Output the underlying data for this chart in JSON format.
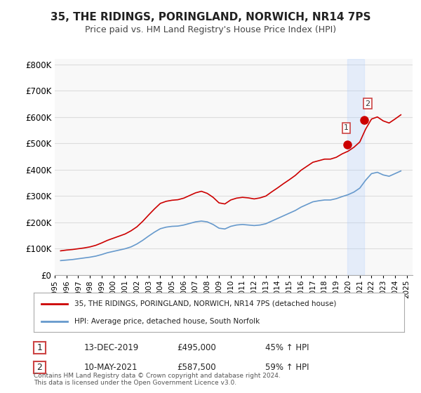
{
  "title": "35, THE RIDINGS, PORINGLAND, NORWICH, NR14 7PS",
  "subtitle": "Price paid vs. HM Land Registry's House Price Index (HPI)",
  "legend_label_1": "35, THE RIDINGS, PORINGLAND, NORWICH, NR14 7PS (detached house)",
  "legend_label_2": "HPI: Average price, detached house, South Norfolk",
  "annotation_1_label": "1",
  "annotation_1_date": "13-DEC-2019",
  "annotation_1_price": "£495,000",
  "annotation_1_hpi": "45% ↑ HPI",
  "annotation_2_label": "2",
  "annotation_2_date": "10-MAY-2021",
  "annotation_2_price": "£587,500",
  "annotation_2_hpi": "59% ↑ HPI",
  "footer": "Contains HM Land Registry data © Crown copyright and database right 2024.\nThis data is licensed under the Open Government Licence v3.0.",
  "line1_color": "#cc0000",
  "line2_color": "#6699cc",
  "marker1_color": "#cc0000",
  "background_color": "#ffffff",
  "grid_color": "#dddddd",
  "ylim": [
    0,
    820000
  ],
  "yticks": [
    0,
    100000,
    200000,
    300000,
    400000,
    500000,
    600000,
    700000,
    800000
  ],
  "ytick_labels": [
    "£0",
    "£100K",
    "£200K",
    "£300K",
    "£400K",
    "£500K",
    "£600K",
    "£700K",
    "£800K"
  ],
  "xlim_start": 1995.0,
  "xlim_end": 2025.5,
  "xtick_years": [
    1995,
    1996,
    1997,
    1998,
    1999,
    2000,
    2001,
    2002,
    2003,
    2004,
    2005,
    2006,
    2007,
    2008,
    2009,
    2010,
    2011,
    2012,
    2013,
    2014,
    2015,
    2016,
    2017,
    2018,
    2019,
    2020,
    2021,
    2022,
    2023,
    2024,
    2025
  ],
  "hpi_data": {
    "years": [
      1995.5,
      1996.0,
      1996.5,
      1997.0,
      1997.5,
      1998.0,
      1998.5,
      1999.0,
      1999.5,
      2000.0,
      2000.5,
      2001.0,
      2001.5,
      2002.0,
      2002.5,
      2003.0,
      2003.5,
      2004.0,
      2004.5,
      2005.0,
      2005.5,
      2006.0,
      2006.5,
      2007.0,
      2007.5,
      2008.0,
      2008.5,
      2009.0,
      2009.5,
      2010.0,
      2010.5,
      2011.0,
      2011.5,
      2012.0,
      2012.5,
      2013.0,
      2013.5,
      2014.0,
      2014.5,
      2015.0,
      2015.5,
      2016.0,
      2016.5,
      2017.0,
      2017.5,
      2018.0,
      2018.5,
      2019.0,
      2019.5,
      2020.0,
      2020.5,
      2021.0,
      2021.5,
      2022.0,
      2022.5,
      2023.0,
      2023.5,
      2024.0,
      2024.5
    ],
    "values": [
      55000,
      57000,
      59000,
      62000,
      65000,
      68000,
      72000,
      78000,
      85000,
      90000,
      95000,
      100000,
      107000,
      118000,
      132000,
      148000,
      163000,
      176000,
      182000,
      185000,
      186000,
      190000,
      196000,
      202000,
      205000,
      202000,
      192000,
      178000,
      175000,
      185000,
      190000,
      192000,
      190000,
      188000,
      190000,
      195000,
      205000,
      215000,
      225000,
      235000,
      245000,
      258000,
      268000,
      278000,
      282000,
      285000,
      285000,
      290000,
      298000,
      305000,
      315000,
      330000,
      360000,
      385000,
      390000,
      380000,
      375000,
      385000,
      395000
    ]
  },
  "property_data": {
    "years": [
      1995.5,
      1996.0,
      1996.5,
      1997.0,
      1997.5,
      1998.0,
      1998.5,
      1999.0,
      1999.5,
      2000.0,
      2000.5,
      2001.0,
      2001.5,
      2002.0,
      2002.5,
      2003.0,
      2003.5,
      2004.0,
      2004.5,
      2005.0,
      2005.5,
      2006.0,
      2006.5,
      2007.0,
      2007.5,
      2008.0,
      2008.5,
      2009.0,
      2009.5,
      2010.0,
      2010.5,
      2011.0,
      2011.5,
      2012.0,
      2012.5,
      2013.0,
      2013.5,
      2014.0,
      2014.5,
      2015.0,
      2015.5,
      2016.0,
      2016.5,
      2017.0,
      2017.5,
      2018.0,
      2018.5,
      2019.0,
      2019.5,
      2020.0,
      2020.5,
      2021.0,
      2021.5,
      2022.0,
      2022.5,
      2023.0,
      2023.5,
      2024.0,
      2024.5
    ],
    "values": [
      92000,
      95000,
      97000,
      100000,
      103000,
      107000,
      113000,
      122000,
      132000,
      140000,
      148000,
      156000,
      168000,
      183000,
      204000,
      228000,
      251000,
      272000,
      280000,
      284000,
      286000,
      292000,
      302000,
      312000,
      318000,
      310000,
      295000,
      274000,
      270000,
      285000,
      292000,
      295000,
      293000,
      289000,
      293000,
      300000,
      316000,
      331000,
      347000,
      362000,
      378000,
      398000,
      413000,
      428000,
      434000,
      440000,
      440000,
      447000,
      460000,
      470000,
      485000,
      505000,
      554000,
      592000,
      600000,
      585000,
      577000,
      592000,
      608000
    ]
  },
  "sale_1": {
    "year": 2019.95,
    "price": 495000
  },
  "sale_2": {
    "year": 2021.37,
    "price": 587500
  },
  "shaded_region_start": 2019.95,
  "shaded_region_end": 2021.37
}
